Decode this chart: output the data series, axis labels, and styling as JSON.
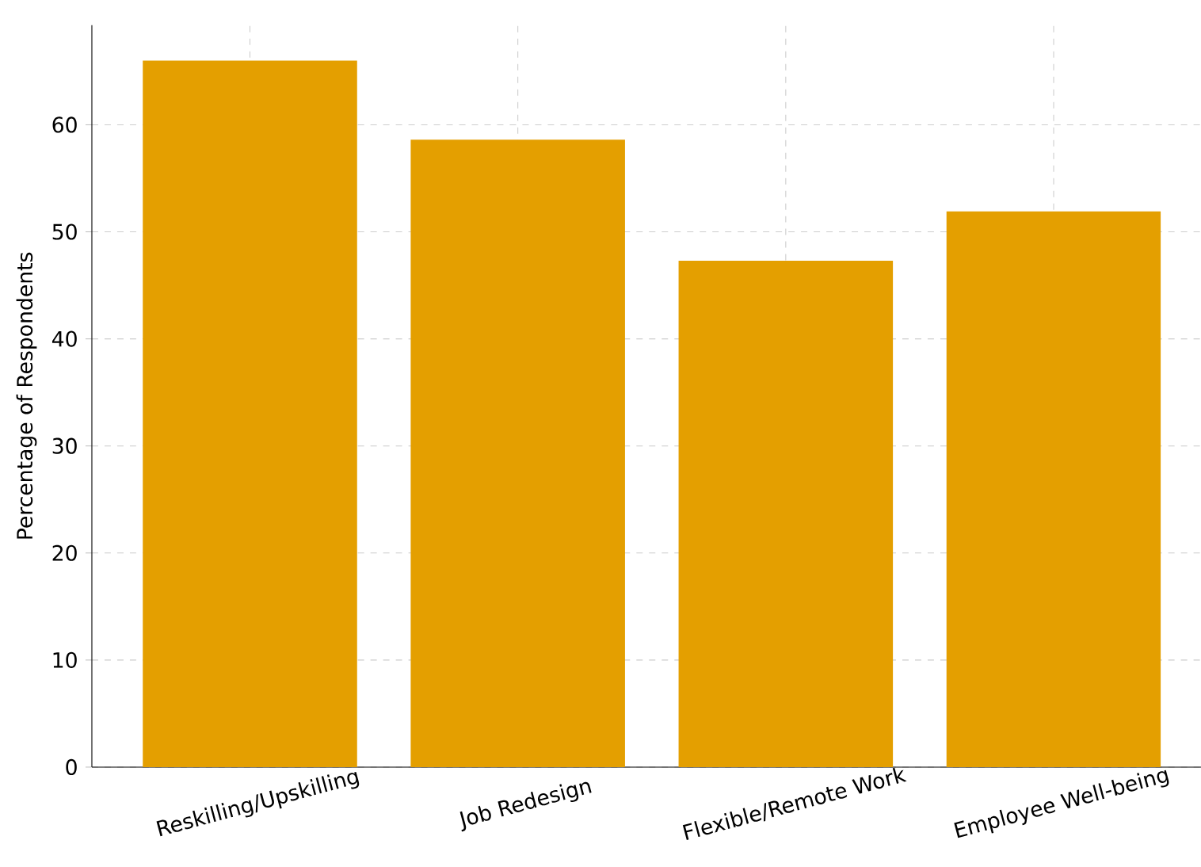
{
  "chart_data": {
    "type": "bar",
    "ylabel": "Percentage of Respondents",
    "categories": [
      "Reskilling/Upskilling",
      "Job Redesign",
      "Flexible/Remote Work",
      "Employee Well-being"
    ],
    "values": [
      66,
      58.6,
      47.3,
      51.9
    ],
    "color": "#e49f00",
    "ylim": [
      0,
      69.3
    ],
    "yticks": [
      0,
      10,
      20,
      30,
      40,
      50,
      60
    ],
    "grid": true
  }
}
